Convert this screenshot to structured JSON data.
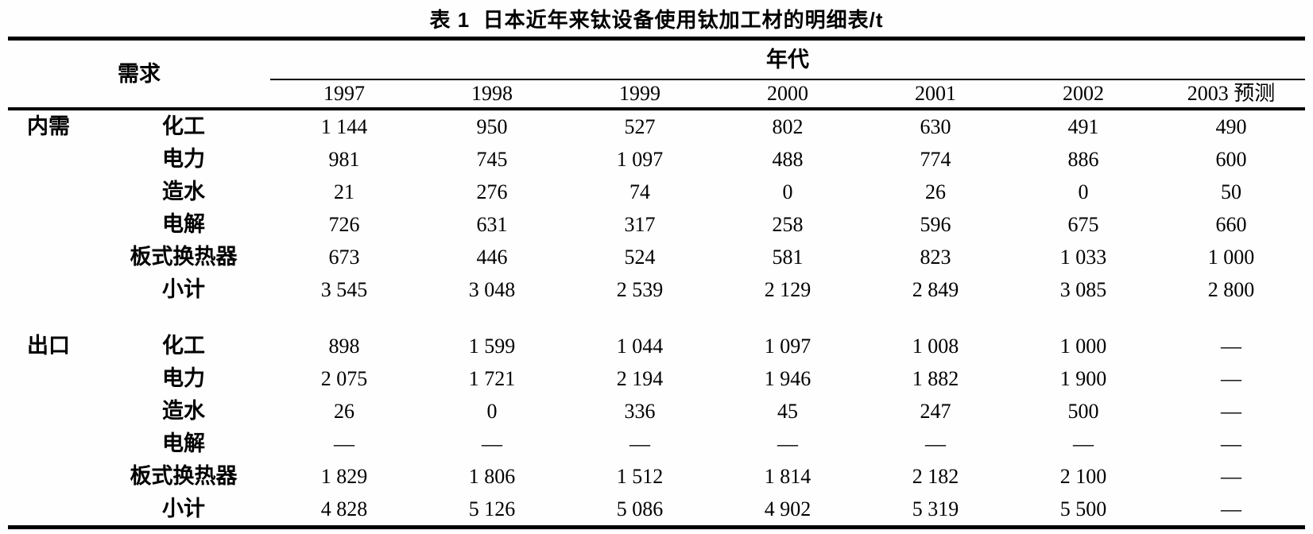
{
  "title": "表 1  日本近年来钛设备使用钛加工材的明细表/t",
  "table": {
    "demand_header": "需求",
    "era_header": "年代",
    "year_columns": [
      "1997",
      "1998",
      "1999",
      "2000",
      "2001",
      "2002",
      "2003 预测"
    ],
    "sections": [
      {
        "name": "内需",
        "rows": [
          {
            "category": "化工",
            "values": [
              "1 144",
              "950",
              "527",
              "802",
              "630",
              "491",
              "490"
            ]
          },
          {
            "category": "电力",
            "values": [
              "981",
              "745",
              "1 097",
              "488",
              "774",
              "886",
              "600"
            ]
          },
          {
            "category": "造水",
            "values": [
              "21",
              "276",
              "74",
              "0",
              "26",
              "0",
              "50"
            ]
          },
          {
            "category": "电解",
            "values": [
              "726",
              "631",
              "317",
              "258",
              "596",
              "675",
              "660"
            ]
          },
          {
            "category": "板式换热器",
            "values": [
              "673",
              "446",
              "524",
              "581",
              "823",
              "1 033",
              "1 000"
            ]
          },
          {
            "category": "小计",
            "values": [
              "3 545",
              "3 048",
              "2 539",
              "2 129",
              "2 849",
              "3 085",
              "2 800"
            ]
          }
        ]
      },
      {
        "name": "出口",
        "rows": [
          {
            "category": "化工",
            "values": [
              "898",
              "1 599",
              "1 044",
              "1 097",
              "1 008",
              "1 000",
              "—"
            ]
          },
          {
            "category": "电力",
            "values": [
              "2 075",
              "1 721",
              "2 194",
              "1 946",
              "1 882",
              "1 900",
              "—"
            ]
          },
          {
            "category": "造水",
            "values": [
              "26",
              "0",
              "336",
              "45",
              "247",
              "500",
              "—"
            ]
          },
          {
            "category": "电解",
            "values": [
              "—",
              "—",
              "—",
              "—",
              "—",
              "—",
              "—"
            ]
          },
          {
            "category": "板式换热器",
            "values": [
              "1 829",
              "1 806",
              "1 512",
              "1 814",
              "2 182",
              "2 100",
              "—"
            ]
          },
          {
            "category": "小计",
            "values": [
              "4 828",
              "5 126",
              "5 086",
              "4 902",
              "5 319",
              "5 500",
              "—"
            ]
          }
        ]
      }
    ]
  }
}
